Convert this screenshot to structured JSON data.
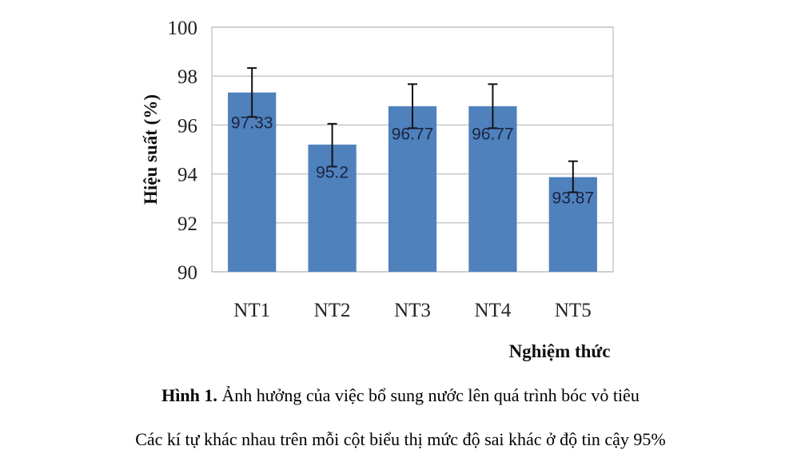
{
  "chart_data": {
    "type": "bar",
    "categories": [
      "NT1",
      "NT2",
      "NT3",
      "NT4",
      "NT5"
    ],
    "values": [
      97.33,
      95.2,
      96.77,
      96.77,
      93.87
    ],
    "value_labels": [
      "97.33",
      "95.2",
      "96.77",
      "96.77",
      "93.87"
    ],
    "error_bars": [
      [
        96.33,
        98.33
      ],
      [
        94.3,
        96.05
      ],
      [
        95.87,
        97.67
      ],
      [
        95.87,
        97.67
      ],
      [
        93.25,
        94.52
      ]
    ],
    "xlabel": "Nghiệm thức",
    "ylabel": "Hiệu suất (%)",
    "ylim": [
      90,
      100
    ],
    "yticks": [
      "90",
      "92",
      "94",
      "96",
      "98",
      "100"
    ],
    "grid": true,
    "bar_color": "#4f81bd"
  },
  "caption": {
    "label": "Hình 1.",
    "text": " Ảnh hưởng của việc bổ sung nước lên quá trình bóc vỏ tiêu",
    "note": "Các kí tự khác nhau trên mỗi cột biểu thị mức độ sai khác ở độ tin cậy 95%"
  }
}
